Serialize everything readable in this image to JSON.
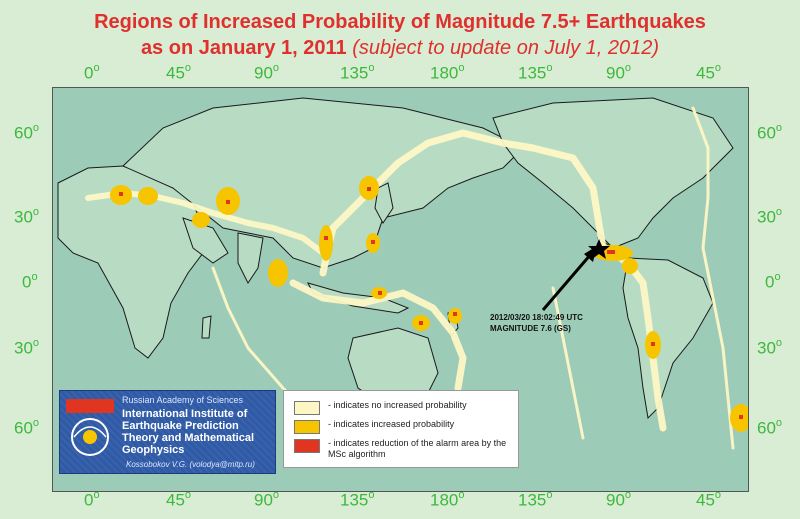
{
  "title": {
    "line1": "Regions of Increased Probability of Magnitude 7.5+ Earthquakes",
    "line2_main": "as on January 1, 2011",
    "line2_sub": "(subject to update on July 1, 2012)"
  },
  "colors": {
    "title": "#e0302d",
    "axis_labels": "#3db83d",
    "ocean": "#9ccbb8",
    "land": "#b8dcc3",
    "no_increase": "#fdf7c5",
    "increased": "#f7c500",
    "reduction": "#e03520"
  },
  "axes": {
    "top_longitudes": [
      "0",
      "45",
      "90",
      "135",
      "180",
      "135",
      "90",
      "45"
    ],
    "bottom_longitudes": [
      "0",
      "45",
      "90",
      "135",
      "180",
      "135",
      "90",
      "45"
    ],
    "left_latitudes": [
      "60",
      "30",
      "0",
      "30",
      "60"
    ],
    "right_latitudes": [
      "60",
      "30",
      "0",
      "30",
      "60"
    ],
    "degree_symbol": "o"
  },
  "event": {
    "line1": "2012/03/20 18:02:49 UTC",
    "line2": "MAGNITUDE 7.6 (GS)",
    "marker_icon": "star-icon"
  },
  "institution": {
    "academy": "Russian Academy of Sciences",
    "name": "International Institute of Earthquake Prediction Theory and Mathematical Geophysics",
    "author": "Kossobokov V.G. (volodya@mitp.ru)"
  },
  "legend": [
    {
      "label": "- indicates no increased probability",
      "color": "#fdf7c5"
    },
    {
      "label": "- indicates increased probability",
      "color": "#f7c500"
    },
    {
      "label": "- indicates reduction of the alarm area by the MSc algorithm",
      "color": "#e03520"
    }
  ]
}
